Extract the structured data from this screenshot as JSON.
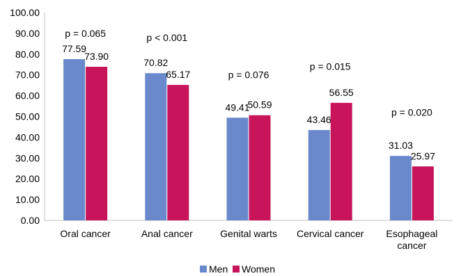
{
  "chart_data": {
    "type": "bar",
    "categories": [
      "Oral cancer",
      "Anal cancer",
      "Genital warts",
      "Cervical cancer",
      "Esophageal cancer"
    ],
    "category_lines": [
      [
        "Oral cancer"
      ],
      [
        "Anal cancer"
      ],
      [
        "Genital warts"
      ],
      [
        "Cervical cancer"
      ],
      [
        "Esophageal",
        "cancer"
      ]
    ],
    "series": [
      {
        "name": "Men",
        "values": [
          77.59,
          70.82,
          49.41,
          43.46,
          31.03
        ],
        "labels": [
          "77.59",
          "70.82",
          "49.41",
          "43.46",
          "31.03"
        ],
        "color": "#6a89cc"
      },
      {
        "name": "Women",
        "values": [
          73.9,
          65.17,
          50.59,
          56.55,
          25.97
        ],
        "labels": [
          "73.90",
          "65.17",
          "50.59",
          "56.55",
          "25.97"
        ],
        "color": "#c8155a"
      }
    ],
    "p_values": [
      "p = 0.065",
      "p < 0.001",
      "p = 0.076",
      "p = 0.015",
      "p = 0.020"
    ],
    "p_value_levels": [
      90,
      88,
      70,
      74,
      52
    ],
    "yticks": [
      "0.00",
      "10.00",
      "20.00",
      "30.00",
      "40.00",
      "50.00",
      "60.00",
      "70.00",
      "80.00",
      "90.00",
      "100.00"
    ],
    "ylim": [
      0,
      100
    ],
    "grid": false,
    "legend_position": "bottom-center",
    "title": "",
    "xlabel": "",
    "ylabel": ""
  }
}
